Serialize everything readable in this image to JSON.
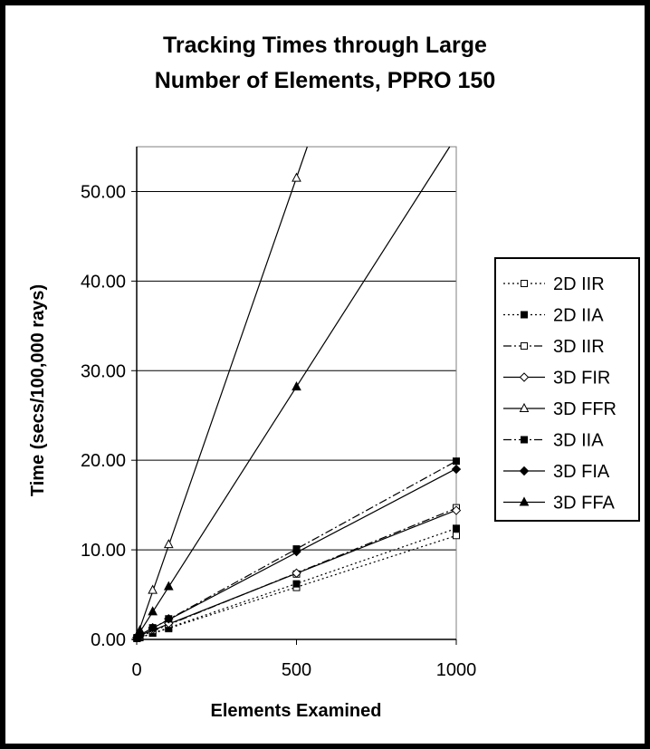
{
  "chart_data": {
    "type": "line",
    "title_lines": [
      "Tracking Times through Large",
      "Number of Elements, PPRO 150"
    ],
    "xlabel": "Elements Examined",
    "ylabel": "Time (secs/100,000 rays)",
    "xlim": [
      0,
      1000
    ],
    "ylim": [
      0,
      55
    ],
    "xticks": [
      0,
      500,
      1000
    ],
    "xtick_labels": [
      "0",
      "500",
      "1000"
    ],
    "yticks": [
      0,
      10,
      20,
      30,
      40,
      50
    ],
    "ytick_labels": [
      "0.00",
      "10.00",
      "20.00",
      "30.00",
      "40.00",
      "50.00"
    ],
    "grid": "horizontal",
    "legend_position": "right",
    "series": [
      {
        "name": "2D IIR",
        "marker": "square-open",
        "dash": "dotted",
        "x": [
          1,
          10,
          50,
          100,
          500,
          1000
        ],
        "y": [
          0.1,
          0.2,
          0.7,
          1.2,
          5.8,
          11.6
        ]
      },
      {
        "name": "2D IIA",
        "marker": "square-filled",
        "dash": "dotted",
        "x": [
          1,
          10,
          50,
          100,
          500,
          1000
        ],
        "y": [
          0.1,
          0.2,
          0.7,
          1.3,
          6.2,
          12.4
        ]
      },
      {
        "name": "3D IIR",
        "marker": "square-open",
        "dash": "dashdot",
        "x": [
          1,
          10,
          50,
          100,
          500,
          1000
        ],
        "y": [
          0.15,
          0.3,
          1.0,
          1.7,
          7.3,
          14.7
        ]
      },
      {
        "name": "3D FIR",
        "marker": "diamond-open",
        "dash": "solid",
        "x": [
          1,
          10,
          50,
          100,
          500,
          1000
        ],
        "y": [
          0.2,
          0.4,
          1.1,
          1.8,
          7.4,
          14.4
        ]
      },
      {
        "name": "3D FFR",
        "marker": "triangle-open",
        "dash": "solid",
        "x": [
          1,
          10,
          50,
          100,
          500
        ],
        "y": [
          0.3,
          1.0,
          5.5,
          10.6,
          51.5
        ]
      },
      {
        "name": "3D IIA",
        "marker": "square-filled",
        "dash": "dashdot",
        "x": [
          1,
          10,
          50,
          100,
          500,
          1000
        ],
        "y": [
          0.2,
          0.5,
          1.3,
          2.3,
          10.1,
          19.9
        ]
      },
      {
        "name": "3D FIA",
        "marker": "diamond-filled",
        "dash": "solid",
        "x": [
          1,
          10,
          50,
          100,
          500,
          1000
        ],
        "y": [
          0.2,
          0.5,
          1.3,
          2.3,
          9.8,
          19.0
        ]
      },
      {
        "name": "3D FFA",
        "marker": "triangle-filled",
        "dash": "solid",
        "x": [
          1,
          10,
          50,
          100,
          500
        ],
        "y": [
          0.3,
          0.8,
          3.1,
          5.9,
          28.2
        ]
      }
    ]
  }
}
